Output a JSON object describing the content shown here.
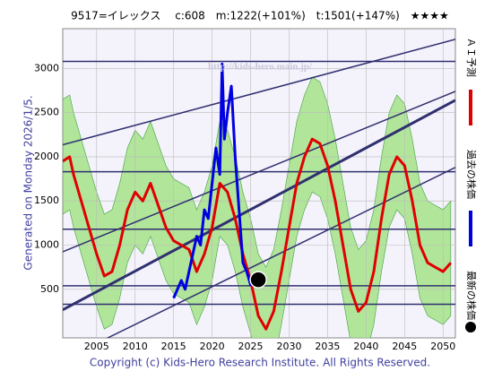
{
  "chart_data": {
    "type": "line",
    "title": "9517=イレックス　 c:608　m:1222(+101%)　t:1501(+147%)　★★★★",
    "side_note": "Generated on Monday 2026/1/5.",
    "watermark": "http://kids-hero.main.jp/",
    "footer": "Copyright (c) Kids-Hero Research Institute. All Rights Reserved.",
    "xlim": [
      2000.6,
      2051.6
    ],
    "ylim": [
      -50,
      3450
    ],
    "xticks": [
      2005,
      2010,
      2015,
      2020,
      2025,
      2030,
      2035,
      2040,
      2045,
      2050
    ],
    "yticks": [
      500,
      1000,
      1500,
      2000,
      2500,
      3000
    ],
    "grid": true,
    "hlines": [
      3080,
      1830,
      1180,
      540,
      330
    ],
    "trend_lines": [
      {
        "x": [
          2000.6,
          2051.6
        ],
        "values": [
          2136,
          3330
        ]
      },
      {
        "x": [
          2000.6,
          2051.6
        ],
        "values": [
          925,
          2740
        ]
      },
      {
        "x": [
          2000.6,
          2051.6
        ],
        "values": [
          268,
          2640
        ]
      },
      {
        "x": [
          2000.6,
          2051.6
        ],
        "values": [
          -300,
          1880
        ]
      }
    ],
    "band": {
      "color": "#9be07a",
      "upper": [
        2650,
        2700,
        2500,
        2200,
        1900,
        1600,
        1350,
        1400,
        1700,
        2100,
        2300,
        2200,
        2400,
        2150,
        1900,
        1750,
        1700,
        1650,
        1400,
        1600,
        1900,
        2400,
        2300,
        2000,
        1600,
        1300,
        900,
        750,
        950,
        1400,
        1900,
        2400,
        2700,
        2900,
        2850,
        2600,
        2200,
        1700,
        1200,
        950,
        1050,
        1400,
        2000,
        2500,
        2700,
        2600,
        2200,
        1700,
        1500,
        1450,
        1400,
        1500
      ],
      "lower": [
        1350,
        1400,
        1200,
        900,
        600,
        300,
        50,
        100,
        400,
        800,
        1000,
        900,
        1100,
        850,
        600,
        450,
        400,
        350,
        100,
        300,
        600,
        1100,
        1000,
        700,
        300,
        0,
        -400,
        -550,
        -350,
        100,
        600,
        1100,
        1400,
        1600,
        1550,
        1300,
        900,
        400,
        -100,
        -350,
        -250,
        100,
        700,
        1200,
        1400,
        1300,
        900,
        400,
        200,
        150,
        100,
        200
      ]
    },
    "series": [
      {
        "name": "ＡＩ予測",
        "color": "#e00000",
        "x": [
          2000.6,
          2001.5,
          2002,
          2003,
          2004,
          2005,
          2006,
          2007,
          2008,
          2009,
          2010,
          2011,
          2012,
          2013,
          2014,
          2015,
          2016,
          2017,
          2018,
          2019,
          2020,
          2021,
          2022,
          2023,
          2024,
          2025,
          2026,
          2027,
          2028,
          2029,
          2030,
          2031,
          2032,
          2033,
          2034,
          2035,
          2036,
          2037,
          2038,
          2039,
          2040,
          2041,
          2042,
          2043,
          2044,
          2045,
          2046,
          2047,
          2048,
          2049,
          2050,
          2051
        ],
        "values": [
          1950,
          2000,
          1800,
          1500,
          1200,
          900,
          650,
          700,
          1000,
          1400,
          1600,
          1500,
          1700,
          1450,
          1200,
          1050,
          1000,
          950,
          700,
          900,
          1200,
          1700,
          1600,
          1300,
          900,
          600,
          200,
          50,
          250,
          700,
          1200,
          1700,
          2000,
          2200,
          2150,
          1900,
          1500,
          1000,
          500,
          250,
          350,
          700,
          1300,
          1800,
          2000,
          1900,
          1500,
          1000,
          800,
          750,
          700,
          800
        ]
      },
      {
        "name": "過去の株価",
        "color": "#0000e0",
        "x": [
          2015,
          2015.5,
          2016,
          2016.5,
          2017,
          2017.5,
          2018,
          2018.5,
          2019,
          2019.5,
          2020,
          2020.5,
          2021,
          2021.3,
          2021.6,
          2022,
          2022.5,
          2023,
          2023.5,
          2024,
          2024.5,
          2025,
          2025.5,
          2026
        ],
        "values": [
          400,
          500,
          600,
          500,
          700,
          900,
          1100,
          1000,
          1400,
          1300,
          1700,
          2100,
          1800,
          3050,
          2200,
          2500,
          2800,
          2000,
          1400,
          800,
          700,
          550,
          650,
          608
        ]
      },
      {
        "name": "最新の株価",
        "color": "#000000",
        "x": [
          2026
        ],
        "values": [
          608
        ]
      }
    ]
  }
}
